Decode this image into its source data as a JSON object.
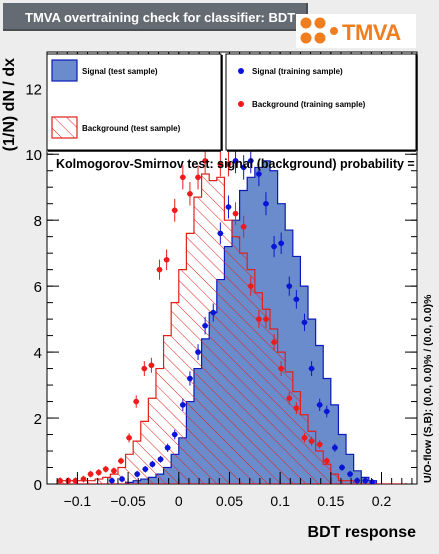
{
  "window": {
    "title": "TMVA overtraining check for classifier: BDT"
  },
  "logo": {
    "text": "TMVA"
  },
  "colors": {
    "signal_fill": "#6a8ccc",
    "signal_line": "#0b1bb8",
    "signal_point": "#0a14d8",
    "background_line": "#e0201c",
    "background_point": "#ef1a1a",
    "frame_bg": "#ffffff",
    "page_bg": "#ededed"
  },
  "chart_data": {
    "type": "bar",
    "title": "",
    "xlabel": "BDT response",
    "ylabel": "(1/N) dN / dx",
    "xlim": [
      -0.13,
      0.235
    ],
    "ylim": [
      0,
      13.1
    ],
    "x_ticks": [
      -0.1,
      -0.05,
      0,
      0.05,
      0.1,
      0.15,
      0.2
    ],
    "x_tick_labels": [
      "−0.1",
      "−0.05",
      "0",
      "0.05",
      "0.1",
      "0.15",
      "0.2"
    ],
    "y_ticks": [
      0,
      2,
      4,
      6,
      8,
      10,
      12
    ],
    "y_tick_labels": [
      "0",
      "2",
      "4",
      "6",
      "8",
      "10",
      "12"
    ],
    "annotation": "Kolmogorov-Smirnov test: signal (background) probability =",
    "side_label": "U/O-flow (S,B): (0.0, 0.0)% / (0.0, 0.0)%",
    "bin_edges": [
      -0.12,
      -0.1125,
      -0.105,
      -0.0975,
      -0.09,
      -0.0825,
      -0.075,
      -0.0675,
      -0.06,
      -0.0525,
      -0.045,
      -0.0375,
      -0.03,
      -0.0225,
      -0.015,
      -0.0075,
      0.0,
      0.0075,
      0.015,
      0.0225,
      0.03,
      0.0375,
      0.045,
      0.0525,
      0.06,
      0.0675,
      0.075,
      0.0825,
      0.09,
      0.0975,
      0.105,
      0.1125,
      0.12,
      0.1275,
      0.135,
      0.1425,
      0.15,
      0.1575,
      0.165,
      0.1725,
      0.18,
      0.1875,
      0.195,
      0.2025,
      0.21,
      0.2175,
      0.225
    ],
    "legend_position": "top",
    "series": [
      {
        "name": "Signal (test sample)",
        "style": "filled-histogram",
        "values": [
          0,
          0,
          0,
          0,
          0,
          0,
          0,
          0,
          0,
          0.05,
          0.1,
          0.15,
          0.2,
          0.3,
          0.5,
          0.9,
          1.4,
          2.5,
          3.5,
          4.4,
          5.2,
          6.2,
          7.2,
          8.0,
          8.9,
          9.3,
          9.6,
          9.8,
          9.5,
          8.5,
          7.7,
          6.9,
          6.0,
          5.0,
          4.2,
          3.2,
          2.4,
          1.5,
          0.9,
          0.4,
          0.2,
          0.1,
          0,
          0,
          0,
          0
        ]
      },
      {
        "name": "Background (test sample)",
        "style": "hatched-histogram",
        "values": [
          0.1,
          0.1,
          0.1,
          0.1,
          0.1,
          0.15,
          0.2,
          0.3,
          0.5,
          0.9,
          1.3,
          1.9,
          2.6,
          3.5,
          4.5,
          5.5,
          6.5,
          7.6,
          8.7,
          9.4,
          9.2,
          9.3,
          8.0,
          7.5,
          7.0,
          6.5,
          5.8,
          5.3,
          4.7,
          4.0,
          3.4,
          2.8,
          2.1,
          1.6,
          1.0,
          0.6,
          0.3,
          0.1,
          0.1,
          0,
          0,
          0,
          0,
          0,
          0,
          0
        ]
      },
      {
        "name": "Signal (training sample)",
        "style": "points",
        "x": [
          -0.066,
          -0.056,
          -0.041,
          -0.033,
          -0.026,
          -0.018,
          -0.011,
          -0.004,
          0.004,
          0.011,
          0.019,
          0.026,
          0.034,
          0.041,
          0.049,
          0.056,
          0.064,
          0.071,
          0.079,
          0.086,
          0.094,
          0.101,
          0.109,
          0.116,
          0.124,
          0.131,
          0.139,
          0.146,
          0.154,
          0.161,
          0.169,
          0.176,
          0.184,
          0.191
        ],
        "values": [
          0.1,
          0.15,
          0.3,
          0.45,
          0.6,
          0.75,
          1.1,
          1.5,
          2.4,
          3.2,
          4.0,
          4.8,
          5.2,
          7.6,
          8.4,
          9.8,
          9.6,
          9.8,
          9.4,
          8.5,
          7.2,
          7.3,
          6.0,
          5.6,
          4.9,
          3.5,
          2.4,
          2.2,
          1.1,
          0.5,
          0.3,
          0.1,
          0.1,
          0.05
        ]
      },
      {
        "name": "Background (training sample)",
        "style": "points",
        "x": [
          -0.117,
          -0.109,
          -0.102,
          -0.094,
          -0.087,
          -0.079,
          -0.072,
          -0.064,
          -0.057,
          -0.049,
          -0.042,
          -0.034,
          -0.027,
          -0.019,
          -0.012,
          -0.004,
          0.004,
          0.011,
          0.019,
          0.026,
          0.034,
          0.041,
          0.049,
          0.056,
          0.064,
          0.071,
          0.079,
          0.086,
          0.094,
          0.101,
          0.109,
          0.116,
          0.124,
          0.131,
          0.139,
          0.146
        ],
        "values": [
          0.1,
          0.1,
          0.1,
          0.15,
          0.3,
          0.35,
          0.45,
          0.4,
          0.7,
          1.4,
          2.5,
          3.5,
          3.6,
          6.5,
          6.8,
          8.3,
          9.3,
          8.8,
          9.3,
          9.8,
          10.6,
          9.7,
          9.7,
          8.2,
          7.8,
          6.0,
          5.0,
          5.0,
          4.3,
          3.5,
          2.6,
          2.3,
          1.4,
          1.3,
          1.2,
          0.7
        ]
      }
    ]
  }
}
